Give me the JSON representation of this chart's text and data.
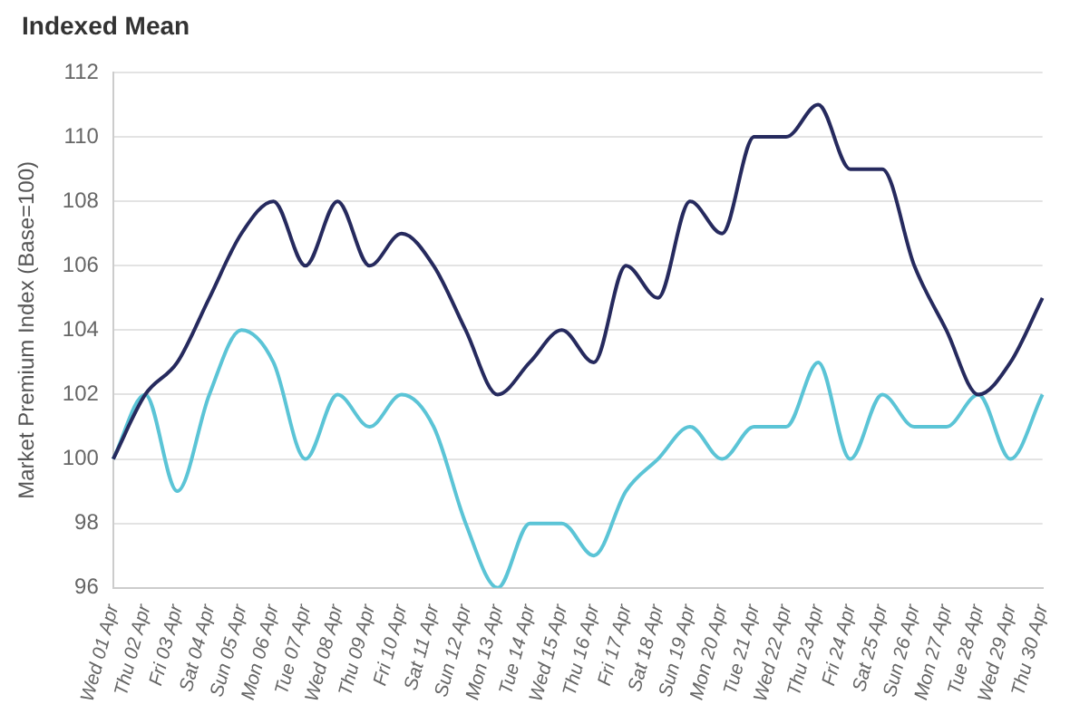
{
  "chart_data": {
    "type": "line",
    "title": "Indexed Mean",
    "ylabel": "Market Premium Index (Base=100)",
    "categories": [
      "Wed 01 Apr",
      "Thu 02 Apr",
      "Fri 03 Apr",
      "Sat 04 Apr",
      "Sun 05 Apr",
      "Mon 06 Apr",
      "Tue 07 Apr",
      "Wed 08 Apr",
      "Thu 09 Apr",
      "Fri 10 Apr",
      "Sat 11 Apr",
      "Sun 12 Apr",
      "Mon 13 Apr",
      "Tue 14 Apr",
      "Wed 15 Apr",
      "Thu 16 Apr",
      "Fri 17 Apr",
      "Sat 18 Apr",
      "Sun 19 Apr",
      "Mon 20 Apr",
      "Tue 21 Apr",
      "Wed 22 Apr",
      "Thu 23 Apr",
      "Fri 24 Apr",
      "Sat 25 Apr",
      "Sun 26 Apr",
      "Mon 27 Apr",
      "Tue 28 Apr",
      "Wed 29 Apr",
      "Thu 30 Apr"
    ],
    "series": [
      {
        "color": "#262a5e",
        "values": [
          100,
          102,
          103,
          105,
          107,
          108,
          106,
          108,
          106,
          107,
          106,
          104,
          102,
          103,
          104,
          103,
          106,
          105,
          108,
          107,
          110,
          110,
          111,
          109,
          109,
          106,
          104,
          102,
          103,
          105
        ]
      },
      {
        "color": "#5bc4d6",
        "values": [
          100,
          102,
          99,
          102,
          104,
          103,
          100,
          102,
          101,
          102,
          101,
          98,
          96,
          98,
          98,
          97,
          99,
          100,
          101,
          100,
          101,
          101,
          103,
          100,
          102,
          101,
          101,
          102,
          100,
          102
        ]
      }
    ],
    "ylim": [
      96,
      112
    ],
    "yticks": [
      96,
      98,
      100,
      102,
      104,
      106,
      108,
      110,
      112
    ],
    "grid": "y",
    "legend": false,
    "marker": "none",
    "line_style": "solid"
  }
}
